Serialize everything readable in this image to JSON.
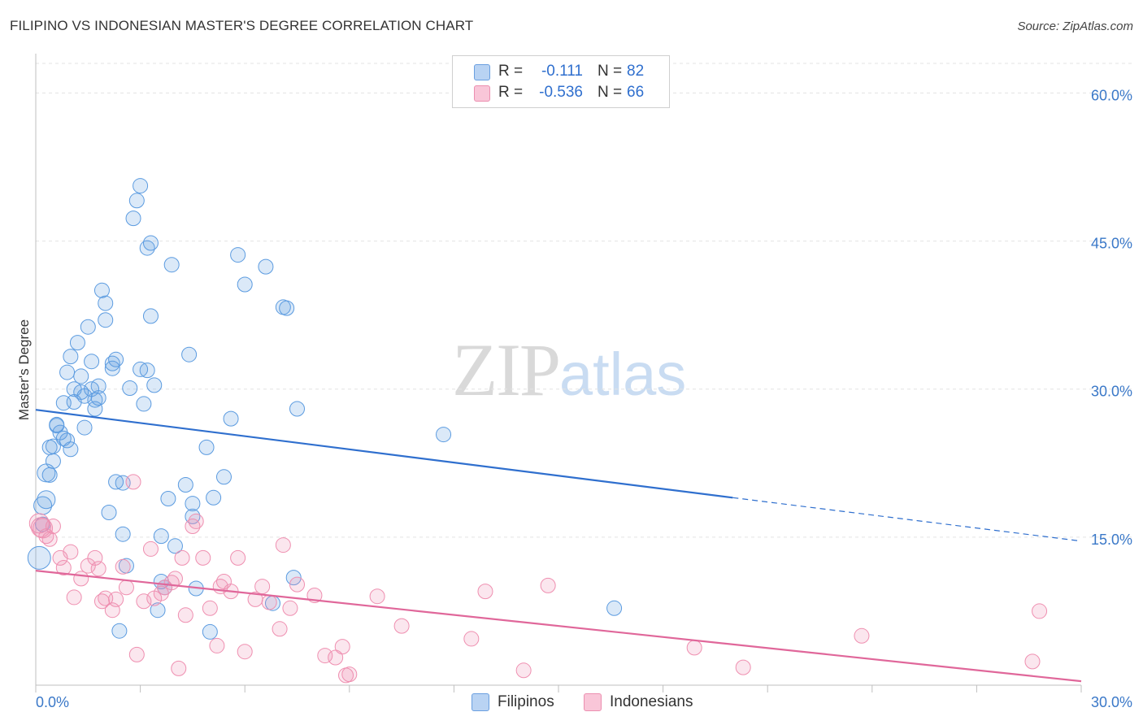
{
  "title": "FILIPINO VS INDONESIAN MASTER'S DEGREE CORRELATION CHART",
  "source": "Source: ZipAtlas.com",
  "watermark": {
    "zip": "ZIP",
    "atlas": "atlas"
  },
  "legend": {
    "series": [
      {
        "r_label": "R =",
        "r_value": "-0.111",
        "n_label": "N =",
        "n_value": "82"
      },
      {
        "r_label": "R =",
        "r_value": "-0.536",
        "n_label": "N =",
        "n_value": "66"
      }
    ]
  },
  "bottom_legend": [
    "Filipinos",
    "Indonesians"
  ],
  "chart_data": {
    "type": "scatter",
    "title": "FILIPINO VS INDONESIAN MASTER'S DEGREE CORRELATION CHART",
    "xlabel": "",
    "ylabel": "Master's Degree",
    "xlim": [
      0,
      30
    ],
    "ylim": [
      0,
      63
    ],
    "x_tick_labels": [
      "0.0%",
      "30.0%"
    ],
    "y_ticks": [
      15,
      30,
      45,
      60
    ],
    "y_tick_labels": [
      "15.0%",
      "30.0%",
      "45.0%",
      "60.0%"
    ],
    "colors": {
      "filipinos": "#5b9be0",
      "indonesians": "#ef8fb0",
      "filipinos_line": "#2f6fce",
      "indonesians_line": "#e0679a"
    },
    "series": [
      {
        "name": "Filipinos",
        "trendline": {
          "x": [
            0,
            20
          ],
          "y": [
            27.9,
            19.0
          ],
          "dashed_to": [
            30,
            14.6
          ]
        },
        "points": [
          [
            0.1,
            12.9
          ],
          [
            0.2,
            16.3
          ],
          [
            0.2,
            18.2
          ],
          [
            0.3,
            18.8
          ],
          [
            0.3,
            21.5
          ],
          [
            0.4,
            21.3
          ],
          [
            0.4,
            24.1
          ],
          [
            0.5,
            22.7
          ],
          [
            0.5,
            24.2
          ],
          [
            0.6,
            26.4
          ],
          [
            0.6,
            26.3
          ],
          [
            0.7,
            25.6
          ],
          [
            0.8,
            28.6
          ],
          [
            0.8,
            25.0
          ],
          [
            0.9,
            31.7
          ],
          [
            0.9,
            24.8
          ],
          [
            1.0,
            23.9
          ],
          [
            1.0,
            33.3
          ],
          [
            1.1,
            30.0
          ],
          [
            1.1,
            28.7
          ],
          [
            1.2,
            34.7
          ],
          [
            1.3,
            29.7
          ],
          [
            1.3,
            31.3
          ],
          [
            1.4,
            26.1
          ],
          [
            1.4,
            29.3
          ],
          [
            1.5,
            36.3
          ],
          [
            1.6,
            30.0
          ],
          [
            1.6,
            32.8
          ],
          [
            1.7,
            28.9
          ],
          [
            1.7,
            28.0
          ],
          [
            1.8,
            30.3
          ],
          [
            1.8,
            29.1
          ],
          [
            1.9,
            40.0
          ],
          [
            2.0,
            38.7
          ],
          [
            2.0,
            37.0
          ],
          [
            2.1,
            17.5
          ],
          [
            2.2,
            32.1
          ],
          [
            2.2,
            32.6
          ],
          [
            2.3,
            33.0
          ],
          [
            2.3,
            20.6
          ],
          [
            2.4,
            5.5
          ],
          [
            2.5,
            20.5
          ],
          [
            2.5,
            15.3
          ],
          [
            2.6,
            12.1
          ],
          [
            2.7,
            30.1
          ],
          [
            2.8,
            47.3
          ],
          [
            2.9,
            49.1
          ],
          [
            3.0,
            32.0
          ],
          [
            3.0,
            50.6
          ],
          [
            3.1,
            28.5
          ],
          [
            3.2,
            31.9
          ],
          [
            3.2,
            44.3
          ],
          [
            3.3,
            37.4
          ],
          [
            3.3,
            44.8
          ],
          [
            3.4,
            30.4
          ],
          [
            3.5,
            7.6
          ],
          [
            3.6,
            10.5
          ],
          [
            3.6,
            15.1
          ],
          [
            3.7,
            9.9
          ],
          [
            3.8,
            18.9
          ],
          [
            3.9,
            42.6
          ],
          [
            4.0,
            14.1
          ],
          [
            4.3,
            20.3
          ],
          [
            4.4,
            33.5
          ],
          [
            4.5,
            17.1
          ],
          [
            4.5,
            18.4
          ],
          [
            4.6,
            9.8
          ],
          [
            4.9,
            24.1
          ],
          [
            5.0,
            5.4
          ],
          [
            5.1,
            19.0
          ],
          [
            5.4,
            21.1
          ],
          [
            5.6,
            27.0
          ],
          [
            5.8,
            43.6
          ],
          [
            6.0,
            40.6
          ],
          [
            6.6,
            42.4
          ],
          [
            6.8,
            8.3
          ],
          [
            7.1,
            38.3
          ],
          [
            7.2,
            38.2
          ],
          [
            7.4,
            10.9
          ],
          [
            7.5,
            28.0
          ],
          [
            11.7,
            25.4
          ],
          [
            16.6,
            7.8
          ]
        ]
      },
      {
        "name": "Indonesians",
        "trendline": {
          "x": [
            0,
            30
          ],
          "y": [
            11.6,
            0.4
          ]
        },
        "points": [
          [
            0.1,
            16.4
          ],
          [
            0.2,
            15.9
          ],
          [
            0.3,
            15.1
          ],
          [
            0.4,
            14.8
          ],
          [
            0.5,
            16.1
          ],
          [
            0.7,
            12.9
          ],
          [
            0.8,
            11.9
          ],
          [
            1.0,
            13.5
          ],
          [
            1.1,
            8.9
          ],
          [
            1.3,
            10.8
          ],
          [
            1.5,
            12.1
          ],
          [
            1.7,
            12.9
          ],
          [
            1.8,
            11.8
          ],
          [
            1.9,
            8.5
          ],
          [
            2.0,
            8.8
          ],
          [
            2.2,
            7.6
          ],
          [
            2.3,
            8.7
          ],
          [
            2.5,
            12.0
          ],
          [
            2.6,
            9.9
          ],
          [
            2.8,
            20.6
          ],
          [
            2.9,
            3.1
          ],
          [
            3.1,
            8.5
          ],
          [
            3.3,
            13.8
          ],
          [
            3.4,
            8.8
          ],
          [
            3.6,
            9.3
          ],
          [
            3.7,
            9.9
          ],
          [
            3.9,
            10.4
          ],
          [
            4.0,
            10.8
          ],
          [
            4.1,
            1.7
          ],
          [
            4.2,
            12.9
          ],
          [
            4.3,
            7.1
          ],
          [
            4.5,
            16.1
          ],
          [
            4.6,
            16.6
          ],
          [
            4.8,
            12.9
          ],
          [
            5.0,
            7.8
          ],
          [
            5.2,
            4.0
          ],
          [
            5.3,
            10.0
          ],
          [
            5.4,
            10.5
          ],
          [
            5.6,
            9.5
          ],
          [
            5.8,
            12.9
          ],
          [
            6.0,
            3.4
          ],
          [
            6.3,
            8.7
          ],
          [
            6.5,
            10.0
          ],
          [
            6.7,
            8.4
          ],
          [
            7.0,
            5.7
          ],
          [
            7.1,
            14.2
          ],
          [
            7.3,
            7.8
          ],
          [
            7.5,
            10.2
          ],
          [
            8.0,
            9.1
          ],
          [
            8.3,
            3.0
          ],
          [
            8.6,
            2.8
          ],
          [
            8.8,
            3.9
          ],
          [
            8.9,
            1.0
          ],
          [
            9.0,
            1.1
          ],
          [
            9.8,
            9.0
          ],
          [
            10.5,
            6.0
          ],
          [
            12.5,
            4.7
          ],
          [
            12.9,
            9.5
          ],
          [
            14.0,
            1.5
          ],
          [
            14.7,
            10.1
          ],
          [
            18.9,
            3.8
          ],
          [
            20.3,
            1.8
          ],
          [
            23.7,
            5.0
          ],
          [
            28.6,
            2.4
          ],
          [
            28.8,
            7.5
          ],
          [
            0.15,
            16.0
          ]
        ]
      }
    ]
  }
}
